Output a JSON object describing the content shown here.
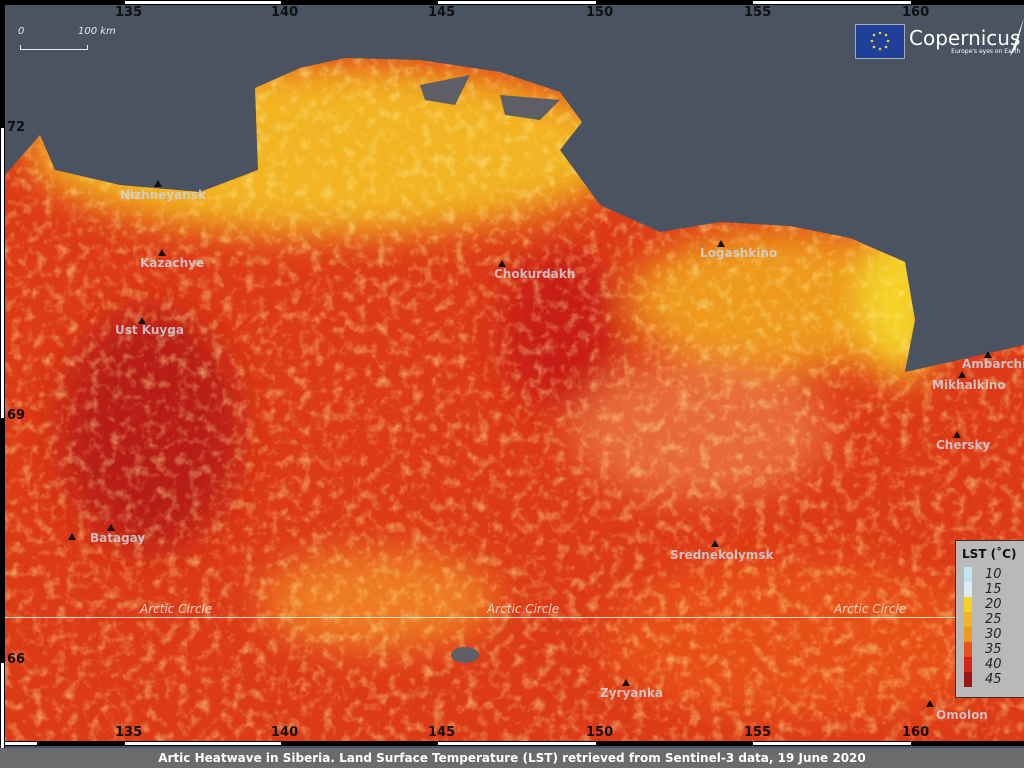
{
  "caption": "Artic Heatwave in Siberia. Land Surface Temperature (LST) retrieved from Sentinel-3 data, 19 June 2020",
  "scale_bar": {
    "start": "0",
    "end": "100 km"
  },
  "logo": {
    "brand": "Copernicus",
    "tagline": "Europe's eyes on Earth"
  },
  "longitude_ticks": [
    "135",
    "140",
    "145",
    "150",
    "155",
    "160"
  ],
  "latitude_ticks": [
    "72",
    "69",
    "66"
  ],
  "arctic_circle_label": "Arctic Circle",
  "places": [
    "Nizhneyansk",
    "Kazachye",
    "Ust Kuyga",
    "Chokurdakh",
    "Logashkino",
    "Ambarchik",
    "Mikhalkino",
    "Chersky",
    "Srednekolymsk",
    "Batagay",
    "Zyryanka",
    "Omolon"
  ],
  "legend": {
    "title": "LST (˚C)",
    "entries": [
      {
        "label": "10",
        "color": "#bfe6f2"
      },
      {
        "label": "15",
        "color": "#d8eef4"
      },
      {
        "label": "20",
        "color": "#f5d327"
      },
      {
        "label": "25",
        "color": "#f2b424"
      },
      {
        "label": "30",
        "color": "#ee9a1e"
      },
      {
        "label": "35",
        "color": "#e5521b"
      },
      {
        "label": "40",
        "color": "#d7241a"
      },
      {
        "label": "45",
        "color": "#9e1515"
      }
    ]
  },
  "colors": {
    "sea": "#4a5361",
    "caption_bg": "#6b6b6b"
  }
}
